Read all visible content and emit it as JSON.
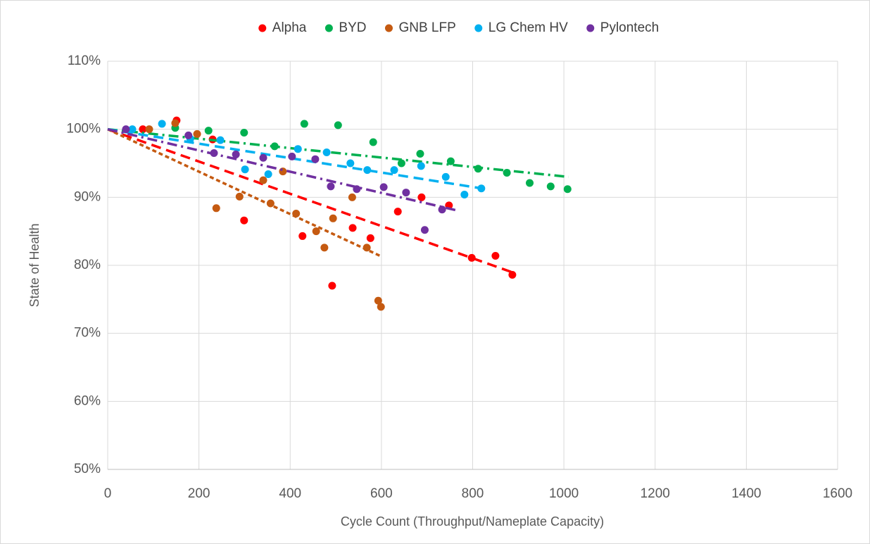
{
  "chart_data": {
    "type": "scatter",
    "x_label": "Cycle Count (Throughput/Nameplate Capacity)",
    "y_label": "State of Health",
    "xlim": [
      0,
      1600
    ],
    "xticks": [
      0,
      200,
      400,
      600,
      800,
      1000,
      1200,
      1400,
      1600
    ],
    "ylim": [
      50,
      110
    ],
    "yticks": [
      {
        "value": 50,
        "label": "50%"
      },
      {
        "value": 60,
        "label": "60%"
      },
      {
        "value": 70,
        "label": "70%"
      },
      {
        "value": 80,
        "label": "80%"
      },
      {
        "value": 90,
        "label": "90%"
      },
      {
        "value": 100,
        "label": "100%"
      },
      {
        "value": 110,
        "label": "110%"
      }
    ],
    "grid": true,
    "legend": "top",
    "series": [
      {
        "name": "Alpha",
        "color": "#ff0000",
        "line_style": "dash",
        "x": [
          77,
          151,
          230,
          299,
          427,
          492,
          537,
          576,
          636,
          688,
          748,
          798,
          850,
          887
        ],
        "values": [
          100,
          101.3,
          98.5,
          86.6,
          84.3,
          77,
          85.5,
          84,
          87.9,
          90,
          88.8,
          81.1,
          81.4,
          78.6
        ],
        "trendline": {
          "x": [
            0,
            890
          ],
          "values": [
            100,
            78.9
          ]
        }
      },
      {
        "name": "BYD",
        "color": "#00b050",
        "line_style": "dashdot",
        "x": [
          148,
          221,
          299,
          366,
          431,
          505,
          582,
          644,
          685,
          752,
          812,
          875,
          925,
          971,
          1008
        ],
        "values": [
          100.2,
          99.8,
          99.5,
          97.5,
          100.8,
          100.6,
          98.1,
          95,
          96.4,
          95.3,
          94.2,
          93.6,
          92.1,
          91.6,
          91.2
        ],
        "trendline": {
          "x": [
            0,
            1010
          ],
          "values": [
            100,
            93
          ]
        }
      },
      {
        "name": "GNB LFP",
        "color": "#c55a11",
        "line_style": "shortdash",
        "x": [
          91,
          148,
          196,
          238,
          289,
          341,
          357,
          384,
          413,
          457,
          475,
          494,
          536,
          568,
          593,
          599
        ],
        "values": [
          100,
          100.9,
          99.3,
          88.4,
          90.1,
          92.5,
          89.1,
          93.8,
          87.6,
          85,
          82.6,
          86.9,
          90,
          82.6,
          74.8,
          73.9
        ],
        "trendline": {
          "x": [
            0,
            600
          ],
          "values": [
            100,
            81.3
          ]
        }
      },
      {
        "name": "LG Chem HV",
        "color": "#00b0f0",
        "line_style": "dash",
        "x": [
          54,
          119,
          181,
          247,
          301,
          352,
          417,
          480,
          532,
          569,
          628,
          687,
          741,
          782,
          819
        ],
        "values": [
          100,
          100.8,
          98.6,
          98.4,
          94.1,
          93.4,
          97.1,
          96.6,
          95,
          94,
          94,
          94.6,
          93,
          90.4,
          91.3
        ],
        "trendline": {
          "x": [
            0,
            830
          ],
          "values": [
            100,
            91.2
          ]
        }
      },
      {
        "name": "Pylontech",
        "color": "#7030a0",
        "line_style": "dashdot",
        "x": [
          40,
          177,
          233,
          281,
          341,
          404,
          455,
          489,
          546,
          605,
          654,
          695,
          733
        ],
        "values": [
          100,
          99.1,
          96.5,
          96.3,
          95.8,
          96,
          95.6,
          91.6,
          91.2,
          91.5,
          90.7,
          85.2,
          88.2
        ],
        "trendline": {
          "x": [
            0,
            770
          ],
          "values": [
            100,
            88
          ]
        }
      }
    ]
  }
}
